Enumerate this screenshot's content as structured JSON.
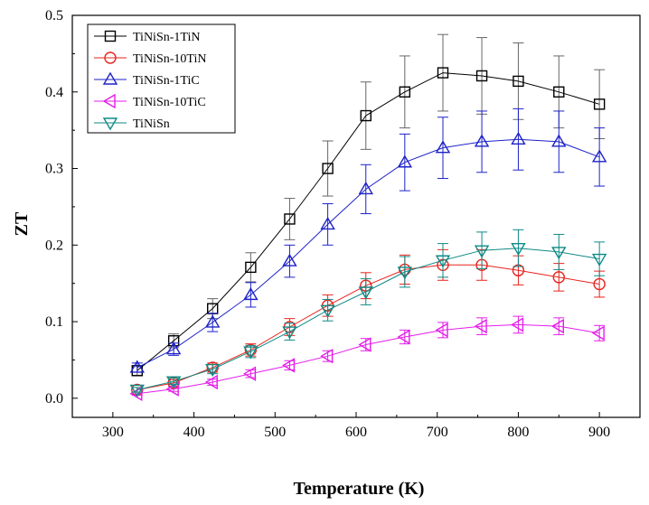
{
  "chart_data": {
    "type": "line",
    "title": "",
    "xlabel": "Temperature (K)",
    "ylabel": "ZT",
    "xlim": [
      250,
      950
    ],
    "ylim": [
      -0.025,
      0.5
    ],
    "xticks": [
      300,
      400,
      500,
      600,
      700,
      800,
      900
    ],
    "yticks": [
      0.0,
      0.1,
      0.2,
      0.3,
      0.4,
      0.5
    ],
    "xtick_labels": [
      "300",
      "400",
      "500",
      "600",
      "700",
      "800",
      "900"
    ],
    "ytick_labels": [
      "0.0",
      "0.1",
      "0.2",
      "0.3",
      "0.4",
      "0.5"
    ],
    "grid": false,
    "legend_position": "top-left",
    "x": [
      330,
      375,
      423,
      470,
      518,
      565,
      612,
      660,
      707,
      755,
      800,
      850,
      900
    ],
    "series": [
      {
        "name": "TiNiSn-1TiN",
        "color": "#000000",
        "marker": "square",
        "values": [
          0.036,
          0.075,
          0.117,
          0.171,
          0.234,
          0.3,
          0.369,
          0.4,
          0.425,
          0.421,
          0.414,
          0.4,
          0.384
        ],
        "errors": [
          0.006,
          0.009,
          0.013,
          0.019,
          0.027,
          0.036,
          0.044,
          0.047,
          0.05,
          0.05,
          0.05,
          0.047,
          0.045
        ]
      },
      {
        "name": "TiNiSn-10TiN",
        "color": "#e8231c",
        "marker": "circle",
        "values": [
          0.011,
          0.02,
          0.04,
          0.063,
          0.093,
          0.121,
          0.147,
          0.168,
          0.174,
          0.174,
          0.167,
          0.158,
          0.149
        ],
        "errors": [
          0.003,
          0.004,
          0.006,
          0.008,
          0.011,
          0.014,
          0.017,
          0.019,
          0.02,
          0.02,
          0.019,
          0.018,
          0.017
        ]
      },
      {
        "name": "TiNiSn-1TiC",
        "color": "#1d22c8",
        "marker": "triangle-up",
        "values": [
          0.04,
          0.064,
          0.099,
          0.135,
          0.179,
          0.227,
          0.273,
          0.308,
          0.327,
          0.335,
          0.338,
          0.335,
          0.315
        ],
        "errors": [
          0.006,
          0.008,
          0.012,
          0.016,
          0.021,
          0.027,
          0.032,
          0.037,
          0.04,
          0.04,
          0.04,
          0.04,
          0.038
        ]
      },
      {
        "name": "TiNiSn-10TiC",
        "color": "#e31ee8",
        "marker": "triangle-left",
        "values": [
          0.006,
          0.012,
          0.021,
          0.032,
          0.043,
          0.055,
          0.07,
          0.08,
          0.089,
          0.094,
          0.096,
          0.094,
          0.085
        ],
        "errors": [
          0.002,
          0.003,
          0.004,
          0.005,
          0.006,
          0.007,
          0.008,
          0.009,
          0.01,
          0.011,
          0.011,
          0.011,
          0.01
        ]
      },
      {
        "name": "TiNiSn",
        "color": "#0e8a86",
        "marker": "triangle-down",
        "values": [
          0.011,
          0.022,
          0.038,
          0.061,
          0.087,
          0.115,
          0.139,
          0.165,
          0.18,
          0.193,
          0.196,
          0.191,
          0.182
        ],
        "errors": [
          0.003,
          0.004,
          0.006,
          0.008,
          0.011,
          0.014,
          0.017,
          0.02,
          0.022,
          0.024,
          0.024,
          0.023,
          0.022
        ]
      }
    ]
  }
}
